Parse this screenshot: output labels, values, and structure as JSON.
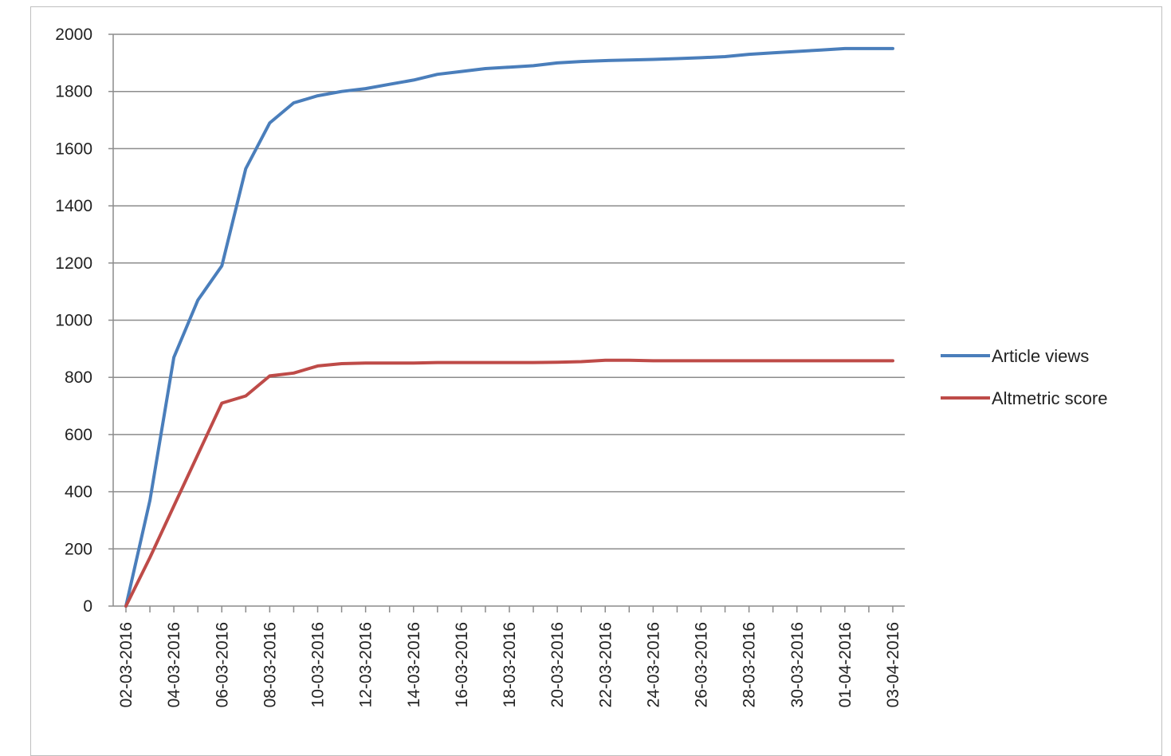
{
  "chart_data": {
    "type": "line",
    "title": "",
    "xlabel": "",
    "ylabel": "",
    "ylim": [
      0,
      2000
    ],
    "yticks": [
      0,
      200,
      400,
      600,
      800,
      1000,
      1200,
      1400,
      1600,
      1800,
      2000
    ],
    "grid": true,
    "legend_position": "right",
    "x": [
      "02-03-2016",
      "03-03-2016",
      "04-03-2016",
      "05-03-2016",
      "06-03-2016",
      "07-03-2016",
      "08-03-2016",
      "09-03-2016",
      "10-03-2016",
      "11-03-2016",
      "12-03-2016",
      "13-03-2016",
      "14-03-2016",
      "15-03-2016",
      "16-03-2016",
      "17-03-2016",
      "18-03-2016",
      "19-03-2016",
      "20-03-2016",
      "21-03-2016",
      "22-03-2016",
      "23-03-2016",
      "24-03-2016",
      "25-03-2016",
      "26-03-2016",
      "27-03-2016",
      "28-03-2016",
      "29-03-2016",
      "30-03-2016",
      "31-03-2016",
      "01-04-2016",
      "02-04-2016",
      "03-04-2016"
    ],
    "xtick_labels": [
      "02-03-2016",
      "04-03-2016",
      "06-03-2016",
      "08-03-2016",
      "10-03-2016",
      "12-03-2016",
      "14-03-2016",
      "16-03-2016",
      "18-03-2016",
      "20-03-2016",
      "22-03-2016",
      "24-03-2016",
      "26-03-2016",
      "28-03-2016",
      "30-03-2016",
      "01-04-2016",
      "03-04-2016"
    ],
    "series": [
      {
        "name": "Article views",
        "color": "#4a7ebb",
        "values": [
          0,
          370,
          870,
          1070,
          1190,
          1530,
          1690,
          1760,
          1785,
          1800,
          1810,
          1825,
          1840,
          1860,
          1870,
          1880,
          1885,
          1890,
          1900,
          1905,
          1908,
          1910,
          1912,
          1915,
          1918,
          1922,
          1930,
          1935,
          1940,
          1945,
          1950,
          1950,
          1950
        ]
      },
      {
        "name": "Altmetric score",
        "color": "#be4b48",
        "values": [
          0,
          170,
          350,
          530,
          710,
          735,
          805,
          815,
          840,
          848,
          850,
          850,
          850,
          852,
          852,
          852,
          852,
          852,
          853,
          855,
          860,
          860,
          858,
          858,
          858,
          858,
          858,
          858,
          858,
          858,
          858,
          858,
          858
        ]
      }
    ]
  }
}
